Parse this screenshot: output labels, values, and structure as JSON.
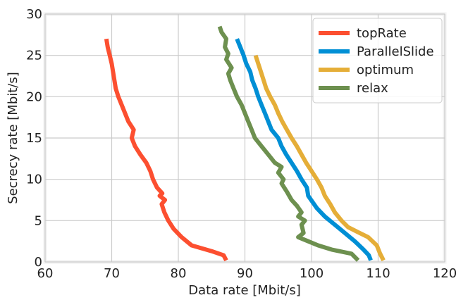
{
  "chart_data": {
    "type": "line",
    "xlabel": "Data rate [Mbit/s]",
    "ylabel": "Secrecy rate [Mbit/s]",
    "xlim": [
      60,
      120
    ],
    "ylim": [
      0,
      30
    ],
    "xticks": [
      60,
      70,
      80,
      90,
      100,
      110,
      120
    ],
    "yticks": [
      0,
      5,
      10,
      15,
      20,
      25,
      30
    ],
    "grid": true,
    "legend_position": "top-right",
    "series": [
      {
        "name": "topRate",
        "color": "#fc4f30",
        "points": [
          [
            87.2,
            0.2
          ],
          [
            86.8,
            0.8
          ],
          [
            85.0,
            1.3
          ],
          [
            82.0,
            2.0
          ],
          [
            80.5,
            3.0
          ],
          [
            79.3,
            4.0
          ],
          [
            78.5,
            5.0
          ],
          [
            77.9,
            6.0
          ],
          [
            77.5,
            7.0
          ],
          [
            78.0,
            7.5
          ],
          [
            77.2,
            8.0
          ],
          [
            77.6,
            8.3
          ],
          [
            76.8,
            9.0
          ],
          [
            76.2,
            10.0
          ],
          [
            75.8,
            11.0
          ],
          [
            75.2,
            12.0
          ],
          [
            74.3,
            13.0
          ],
          [
            73.5,
            14.0
          ],
          [
            73.0,
            15.0
          ],
          [
            73.3,
            16.0
          ],
          [
            72.5,
            17.0
          ],
          [
            72.0,
            18.0
          ],
          [
            71.5,
            19.0
          ],
          [
            71.0,
            20.0
          ],
          [
            70.6,
            21.0
          ],
          [
            70.4,
            22.0
          ],
          [
            70.2,
            23.0
          ],
          [
            70.0,
            24.0
          ],
          [
            69.7,
            25.0
          ],
          [
            69.4,
            26.0
          ],
          [
            69.2,
            27.0
          ]
        ]
      },
      {
        "name": "ParallelSlide",
        "color": "#008fd5",
        "points": [
          [
            108.9,
            0.2
          ],
          [
            108.6,
            0.8
          ],
          [
            107.8,
            1.5
          ],
          [
            106.5,
            2.5
          ],
          [
            105.0,
            3.5
          ],
          [
            103.5,
            4.5
          ],
          [
            102.0,
            5.5
          ],
          [
            100.8,
            6.5
          ],
          [
            99.5,
            8.0
          ],
          [
            99.3,
            9.0
          ],
          [
            98.5,
            10.0
          ],
          [
            97.8,
            11.0
          ],
          [
            97.0,
            12.0
          ],
          [
            96.2,
            13.0
          ],
          [
            95.5,
            14.0
          ],
          [
            95.0,
            15.0
          ],
          [
            94.0,
            16.0
          ],
          [
            93.5,
            17.0
          ],
          [
            93.0,
            18.0
          ],
          [
            92.5,
            19.0
          ],
          [
            92.0,
            20.0
          ],
          [
            91.6,
            21.0
          ],
          [
            91.1,
            22.0
          ],
          [
            90.8,
            23.0
          ],
          [
            90.2,
            24.0
          ],
          [
            89.8,
            25.0
          ],
          [
            89.3,
            26.0
          ],
          [
            88.8,
            27.0
          ]
        ]
      },
      {
        "name": "optimum",
        "color": "#e5ae38",
        "points": [
          [
            110.8,
            0.2
          ],
          [
            110.3,
            1.0
          ],
          [
            109.8,
            2.0
          ],
          [
            108.5,
            3.0
          ],
          [
            107.0,
            3.6
          ],
          [
            105.5,
            4.2
          ],
          [
            104.5,
            5.0
          ],
          [
            103.5,
            6.0
          ],
          [
            102.8,
            7.0
          ],
          [
            102.0,
            8.0
          ],
          [
            101.5,
            9.0
          ],
          [
            100.8,
            10.0
          ],
          [
            100.0,
            11.0
          ],
          [
            99.2,
            12.0
          ],
          [
            98.5,
            13.0
          ],
          [
            97.8,
            14.0
          ],
          [
            97.0,
            15.0
          ],
          [
            96.3,
            16.0
          ],
          [
            95.6,
            17.0
          ],
          [
            95.0,
            18.0
          ],
          [
            94.5,
            19.0
          ],
          [
            93.8,
            20.0
          ],
          [
            93.2,
            21.0
          ],
          [
            92.8,
            22.0
          ],
          [
            92.4,
            23.0
          ],
          [
            92.0,
            24.0
          ],
          [
            91.6,
            25.0
          ]
        ]
      },
      {
        "name": "relax",
        "color": "#6d904f",
        "points": [
          [
            107.0,
            0.2
          ],
          [
            106.0,
            1.0
          ],
          [
            103.0,
            1.5
          ],
          [
            101.0,
            2.0
          ],
          [
            99.5,
            2.5
          ],
          [
            98.0,
            3.0
          ],
          [
            98.8,
            3.5
          ],
          [
            98.5,
            4.5
          ],
          [
            99.0,
            5.0
          ],
          [
            98.0,
            5.5
          ],
          [
            98.5,
            6.0
          ],
          [
            97.8,
            6.8
          ],
          [
            97.0,
            7.5
          ],
          [
            96.3,
            8.5
          ],
          [
            95.5,
            9.5
          ],
          [
            95.8,
            10.0
          ],
          [
            95.0,
            10.8
          ],
          [
            95.5,
            11.5
          ],
          [
            94.5,
            12.0
          ],
          [
            93.5,
            13.0
          ],
          [
            92.5,
            14.0
          ],
          [
            91.5,
            15.0
          ],
          [
            91.0,
            16.0
          ],
          [
            90.5,
            17.0
          ],
          [
            90.0,
            18.0
          ],
          [
            89.5,
            19.0
          ],
          [
            88.8,
            20.0
          ],
          [
            88.3,
            21.0
          ],
          [
            87.8,
            22.0
          ],
          [
            87.5,
            22.8
          ],
          [
            88.0,
            23.5
          ],
          [
            87.2,
            24.5
          ],
          [
            87.5,
            25.2
          ],
          [
            87.0,
            26.0
          ],
          [
            87.2,
            27.0
          ],
          [
            86.5,
            27.8
          ],
          [
            86.2,
            28.5
          ]
        ]
      }
    ]
  }
}
